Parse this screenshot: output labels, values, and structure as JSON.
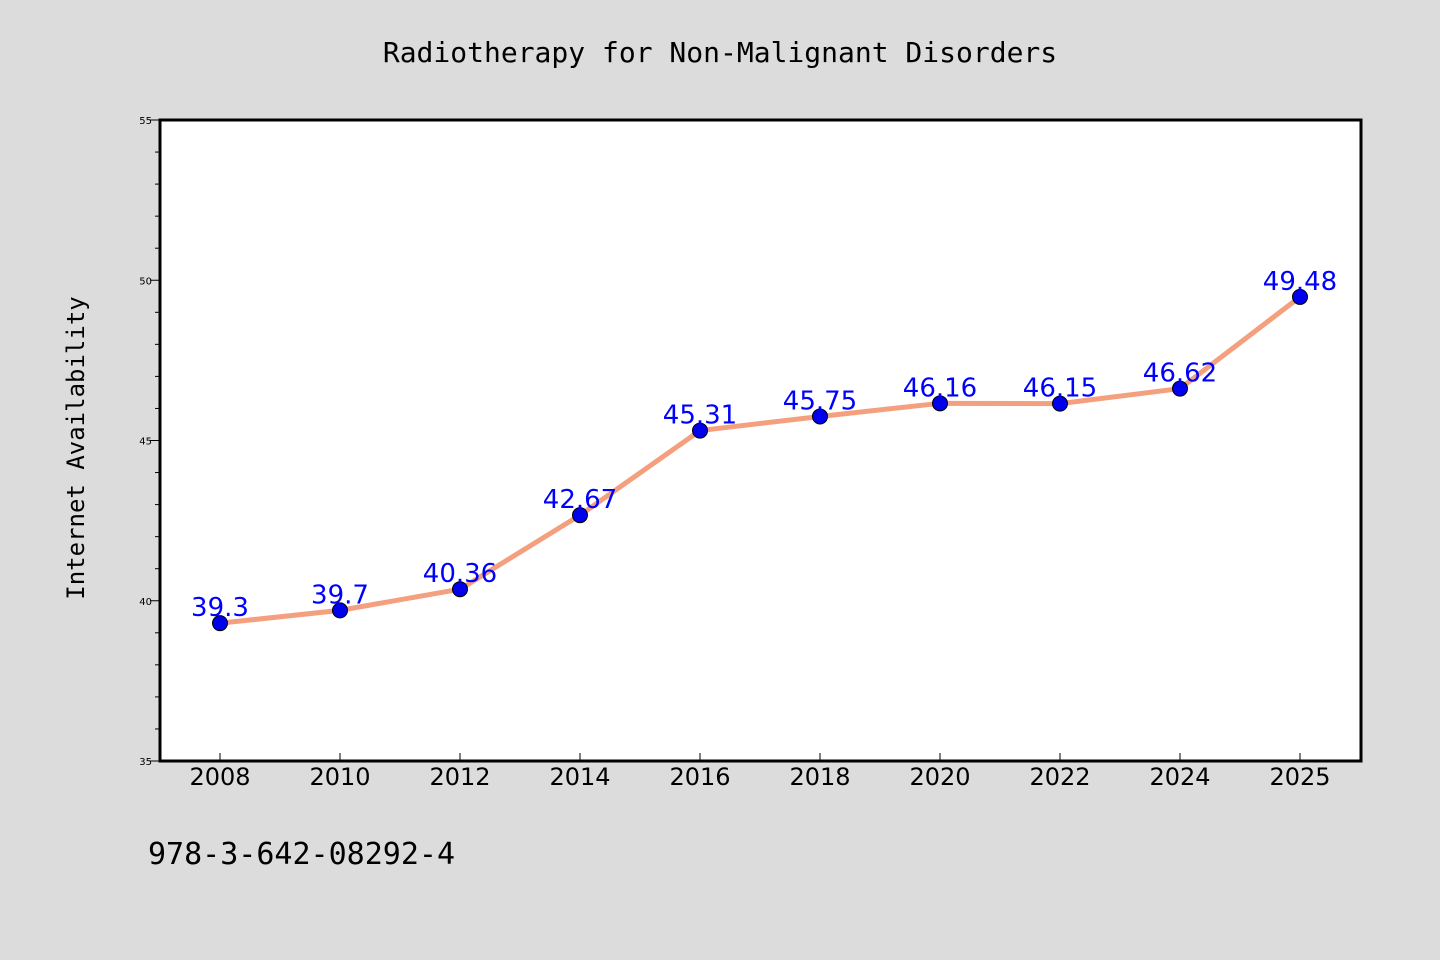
{
  "chart_data": {
    "type": "line",
    "title": "Radiotherapy for Non-Malignant Disorders",
    "xlabel": "",
    "ylabel": "Internet Availability",
    "categories": [
      "2008",
      "2010",
      "2012",
      "2014",
      "2016",
      "2018",
      "2020",
      "2022",
      "2024",
      "2025"
    ],
    "series": [
      {
        "values": [
          39.3,
          39.7,
          40.36,
          42.67,
          45.31,
          45.75,
          46.16,
          46.15,
          46.62,
          49.48
        ],
        "data_labels": [
          "39.3",
          "39.7",
          "40.36",
          "42.67",
          "45.31",
          "45.75",
          "46.16",
          "46.15",
          "46.62",
          "49.48"
        ],
        "line_color": "#f4a07f",
        "marker_color": "#0000ee"
      }
    ],
    "ylim": [
      35,
      55
    ],
    "yticks": [
      "35",
      "40",
      "45",
      "50",
      "55"
    ],
    "grid": false,
    "label_color": "#0000ff"
  },
  "footer": {
    "text": "978-3-642-08292-4"
  }
}
